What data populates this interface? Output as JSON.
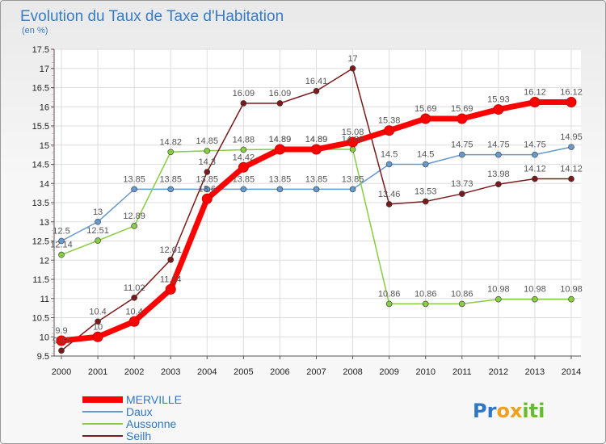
{
  "chart_data": {
    "type": "line",
    "title": "Evolution du Taux de Taxe d'Habitation",
    "subtitle": "(en %)",
    "x": [
      2000,
      2001,
      2002,
      2003,
      2004,
      2005,
      2006,
      2007,
      2008,
      2009,
      2010,
      2011,
      2012,
      2013,
      2014
    ],
    "ylim": [
      9.5,
      17.5
    ],
    "yticks": [
      9.5,
      10,
      10.5,
      11,
      11.5,
      12,
      12.5,
      13,
      13.5,
      14,
      14.5,
      15,
      15.5,
      16,
      16.5,
      17,
      17.5
    ],
    "grid": true,
    "legend_position": "bottom-left",
    "series": [
      {
        "name": "MERVILLE",
        "color": "#ff0000",
        "values": [
          9.9,
          10,
          10.4,
          11.24,
          13.6,
          14.42,
          14.89,
          14.89,
          15.08,
          15.38,
          15.69,
          15.69,
          15.93,
          16.12,
          16.12
        ]
      },
      {
        "name": "Daux",
        "color": "#6699cc",
        "values": [
          12.5,
          13,
          13.85,
          13.85,
          13.85,
          13.85,
          13.85,
          13.85,
          13.85,
          14.5,
          14.5,
          14.75,
          14.75,
          14.75,
          14.95
        ]
      },
      {
        "name": "Aussonne",
        "color": "#88cc44",
        "values": [
          12.14,
          12.51,
          12.89,
          14.82,
          14.85,
          14.88,
          14.89,
          14.89,
          14.89,
          10.86,
          10.86,
          10.86,
          10.98,
          10.98,
          10.98
        ]
      },
      {
        "name": "Seilh",
        "color": "#7a1a1a",
        "values": [
          9.64,
          10.4,
          11.02,
          12.01,
          14.3,
          16.09,
          16.09,
          16.41,
          17,
          13.46,
          13.53,
          13.73,
          13.98,
          14.12,
          14.12
        ]
      }
    ],
    "data_labels": [
      {
        "series": "MERVILLE",
        "x": 2000,
        "text": "9.9"
      },
      {
        "series": "MERVILLE",
        "x": 2001,
        "text": "10"
      },
      {
        "series": "MERVILLE",
        "x": 2002,
        "text": "10.4"
      },
      {
        "series": "MERVILLE",
        "x": 2003,
        "text": "11.24"
      },
      {
        "series": "MERVILLE",
        "x": 2004,
        "text": "13.6"
      },
      {
        "series": "MERVILLE",
        "x": 2005,
        "text": "14.42"
      },
      {
        "series": "MERVILLE",
        "x": 2006,
        "text": "14.89"
      },
      {
        "series": "MERVILLE",
        "x": 2007,
        "text": "14.89"
      },
      {
        "series": "MERVILLE",
        "x": 2008,
        "text": "15.08"
      },
      {
        "series": "MERVILLE",
        "x": 2009,
        "text": "15.38"
      },
      {
        "series": "MERVILLE",
        "x": 2010,
        "text": "15.69"
      },
      {
        "series": "MERVILLE",
        "x": 2011,
        "text": "15.69"
      },
      {
        "series": "MERVILLE",
        "x": 2012,
        "text": "15.93"
      },
      {
        "series": "MERVILLE",
        "x": 2013,
        "text": "16.12"
      },
      {
        "series": "MERVILLE",
        "x": 2014,
        "text": "16.12"
      },
      {
        "series": "Daux",
        "x": 2000,
        "text": "12.5"
      },
      {
        "series": "Daux",
        "x": 2001,
        "text": "13"
      },
      {
        "series": "Daux",
        "x": 2002,
        "text": "13.85"
      },
      {
        "series": "Daux",
        "x": 2003,
        "text": "13.85"
      },
      {
        "series": "Daux",
        "x": 2004,
        "text": "13.85"
      },
      {
        "series": "Daux",
        "x": 2005,
        "text": "13.85"
      },
      {
        "series": "Daux",
        "x": 2006,
        "text": "13.85"
      },
      {
        "series": "Daux",
        "x": 2007,
        "text": "13.85"
      },
      {
        "series": "Daux",
        "x": 2008,
        "text": "13.85"
      },
      {
        "series": "Daux",
        "x": 2009,
        "text": "14.5"
      },
      {
        "series": "Daux",
        "x": 2010,
        "text": "14.5"
      },
      {
        "series": "Daux",
        "x": 2011,
        "text": "14.75"
      },
      {
        "series": "Daux",
        "x": 2012,
        "text": "14.75"
      },
      {
        "series": "Daux",
        "x": 2013,
        "text": "14.75"
      },
      {
        "series": "Daux",
        "x": 2014,
        "text": "14.95"
      },
      {
        "series": "Aussonne",
        "x": 2000,
        "text": "12.14"
      },
      {
        "series": "Aussonne",
        "x": 2001,
        "text": "12.51"
      },
      {
        "series": "Aussonne",
        "x": 2002,
        "text": "12.89"
      },
      {
        "series": "Aussonne",
        "x": 2003,
        "text": "14.82"
      },
      {
        "series": "Aussonne",
        "x": 2004,
        "text": "14.85"
      },
      {
        "series": "Aussonne",
        "x": 2005,
        "text": "14.88"
      },
      {
        "series": "Aussonne",
        "x": 2006,
        "text": "14.89"
      },
      {
        "series": "Aussonne",
        "x": 2007,
        "text": "14.89"
      },
      {
        "series": "Aussonne",
        "x": 2008,
        "text": "14.89"
      },
      {
        "series": "Aussonne",
        "x": 2009,
        "text": "10.86"
      },
      {
        "series": "Aussonne",
        "x": 2010,
        "text": "10.86"
      },
      {
        "series": "Aussonne",
        "x": 2011,
        "text": "10.86"
      },
      {
        "series": "Aussonne",
        "x": 2012,
        "text": "10.98"
      },
      {
        "series": "Aussonne",
        "x": 2013,
        "text": "10.98"
      },
      {
        "series": "Aussonne",
        "x": 2014,
        "text": "10.98"
      },
      {
        "series": "Seilh",
        "x": 2000,
        "text": "9.64"
      },
      {
        "series": "Seilh",
        "x": 2001,
        "text": "10.4"
      },
      {
        "series": "Seilh",
        "x": 2002,
        "text": "11.02"
      },
      {
        "series": "Seilh",
        "x": 2003,
        "text": "12.01"
      },
      {
        "series": "Seilh",
        "x": 2004,
        "text": "14.3"
      },
      {
        "series": "Seilh",
        "x": 2005,
        "text": "16.09"
      },
      {
        "series": "Seilh",
        "x": 2006,
        "text": "16.09"
      },
      {
        "series": "Seilh",
        "x": 2007,
        "text": "16.41"
      },
      {
        "series": "Seilh",
        "x": 2008,
        "text": "17"
      },
      {
        "series": "Seilh",
        "x": 2009,
        "text": "13.46"
      },
      {
        "series": "Seilh",
        "x": 2010,
        "text": "13.53"
      },
      {
        "series": "Seilh",
        "x": 2011,
        "text": "13.73"
      },
      {
        "series": "Seilh",
        "x": 2012,
        "text": "13.98"
      },
      {
        "series": "Seilh",
        "x": 2013,
        "text": "14.12"
      },
      {
        "series": "Seilh",
        "x": 2014,
        "text": "14.12"
      }
    ]
  },
  "logo": {
    "text": "Proxiti",
    "letters": [
      {
        "ch": "P",
        "color": "#2e76c6"
      },
      {
        "ch": "r",
        "color": "#2e76c6"
      },
      {
        "ch": "o",
        "color": "#f0a020"
      },
      {
        "ch": "x",
        "color": "#f0a020"
      },
      {
        "ch": "i",
        "color": "#66bb33"
      },
      {
        "ch": "t",
        "color": "#66bb33"
      },
      {
        "ch": "i",
        "color": "#66bb33"
      }
    ]
  }
}
